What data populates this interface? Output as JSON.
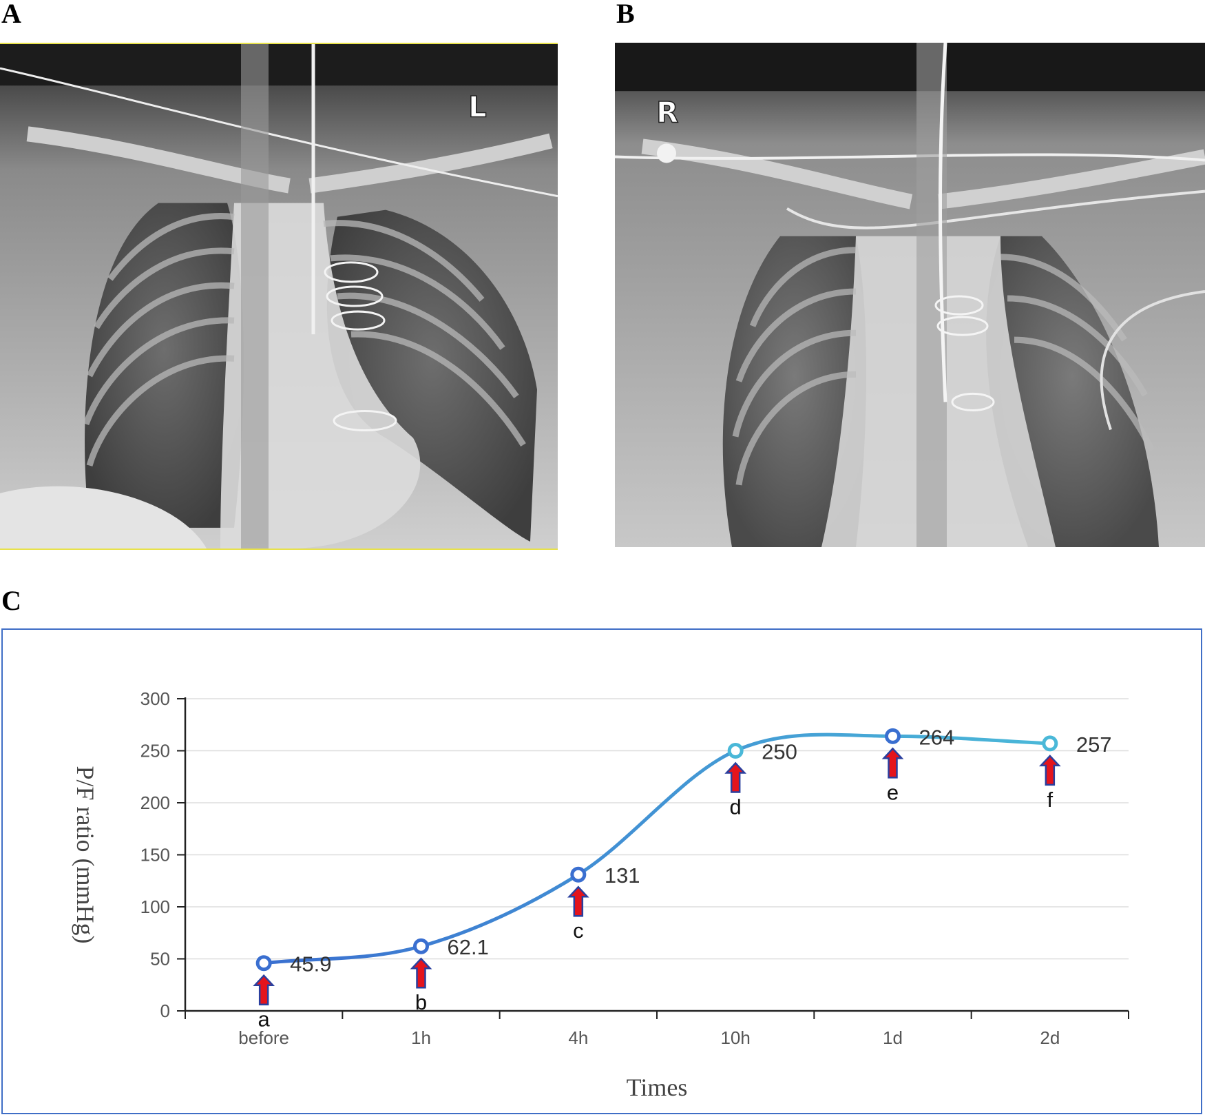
{
  "panels": {
    "a_label": "A",
    "b_label": "B",
    "c_label": "C"
  },
  "xray_a": {
    "marker": "L"
  },
  "xray_b": {
    "marker": "R"
  },
  "chart_data": {
    "type": "line",
    "title": "",
    "xlabel": "Times",
    "ylabel": "P/F ratio (mmHg)",
    "categories": [
      "before",
      "1h",
      "4h",
      "10h",
      "1d",
      "2d"
    ],
    "series": [
      {
        "values": [
          45.9,
          62.1,
          131,
          250,
          264,
          257
        ]
      }
    ],
    "data_labels": [
      "45.9",
      "62.1",
      "131",
      "250",
      "264",
      "257"
    ],
    "point_letters": [
      "a",
      "b",
      "c",
      "d",
      "e",
      "f"
    ],
    "ylim": [
      0,
      300
    ],
    "yticks": [
      0,
      50,
      100,
      150,
      200,
      250,
      300
    ],
    "grid": true,
    "smooth": true,
    "colors": {
      "line_start": "#3a6fd0",
      "line_end": "#4ab8d8",
      "arrow_fill": "#e4141c",
      "arrow_outline": "#2a3f9e",
      "frame": "#3f6ec6"
    }
  }
}
